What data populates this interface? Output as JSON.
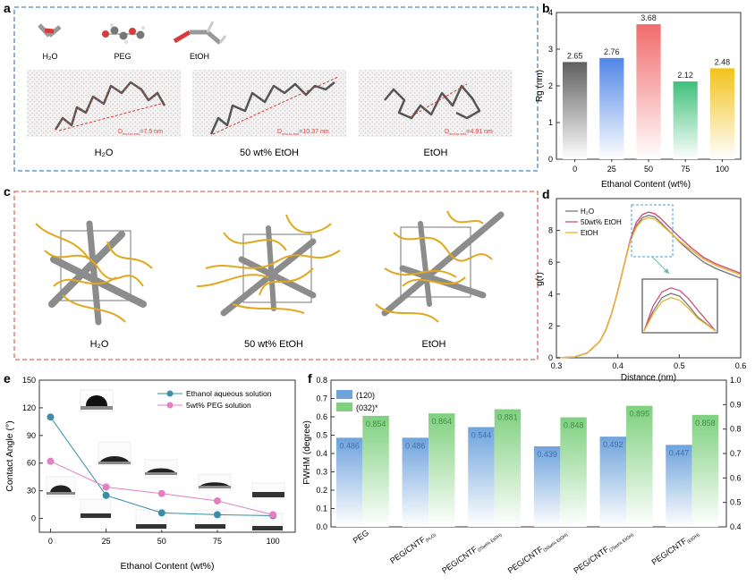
{
  "panel_letters": {
    "a": "a",
    "b": "b",
    "c": "c",
    "d": "d",
    "e": "e",
    "f": "f"
  },
  "panel_a": {
    "molecules": [
      "H₂O",
      "PEG",
      "EtOH"
    ],
    "captions": [
      "H₂O",
      "50 wt% EtOH",
      "EtOH"
    ],
    "d_sub": "end-to-end",
    "d_values": [
      "=7.5 nm",
      "=10.37 nm",
      "=4.91 nm"
    ],
    "d_letter": "D"
  },
  "panel_c": {
    "captions": [
      "H₂O",
      "50 wt% EtOH",
      "EtOH"
    ]
  },
  "colors": {
    "blue_frame": "#4a86c8",
    "red_frame": "#e06a5a",
    "polymer": "#e0a81e",
    "cntf": "#8c8c8c"
  },
  "chart_data": [
    {
      "id": "b",
      "type": "bar",
      "categories": [
        "0",
        "25",
        "50",
        "75",
        "100"
      ],
      "values": [
        2.65,
        2.76,
        3.68,
        2.12,
        2.48
      ],
      "value_labels": [
        "2.65",
        "2.76",
        "3.68",
        "2.12",
        "2.48"
      ],
      "colors": [
        "#6b6b6b",
        "#4f86e8",
        "#f06b6b",
        "#3fc07a",
        "#f2c21b"
      ],
      "xlabel": "Ethanol Content (wt%)",
      "ylabel": "Rg (nm)",
      "ylim": [
        0,
        4
      ],
      "yticks": [
        "0",
        "1",
        "2",
        "3",
        "4"
      ]
    },
    {
      "id": "d",
      "type": "line",
      "xlabel": "Distance (nm)",
      "ylabel": "g(r)",
      "xlim": [
        0.3,
        0.6
      ],
      "ylim": [
        0,
        10
      ],
      "xticks": [
        "0.3",
        "0.4",
        "0.5",
        "0.6"
      ],
      "yticks": [
        "0",
        "2",
        "4",
        "6",
        "8"
      ],
      "series": [
        {
          "name": "H₂O",
          "color": "#7a7a7a",
          "x": [
            0.3,
            0.33,
            0.35,
            0.37,
            0.38,
            0.39,
            0.4,
            0.41,
            0.42,
            0.43,
            0.44,
            0.45,
            0.46,
            0.47,
            0.48,
            0.5,
            0.52,
            0.54,
            0.56,
            0.58,
            0.6
          ],
          "y": [
            0,
            0.05,
            0.3,
            1.0,
            1.7,
            2.8,
            4.2,
            5.8,
            7.3,
            8.3,
            8.8,
            8.95,
            8.85,
            8.5,
            8.1,
            7.3,
            6.6,
            6.0,
            5.6,
            5.3,
            5.0
          ]
        },
        {
          "name": "50wt% EtOH",
          "color": "#d0507a",
          "x": [
            0.3,
            0.33,
            0.35,
            0.37,
            0.38,
            0.39,
            0.4,
            0.41,
            0.42,
            0.43,
            0.44,
            0.45,
            0.46,
            0.47,
            0.48,
            0.5,
            0.52,
            0.54,
            0.56,
            0.58,
            0.6
          ],
          "y": [
            0,
            0.05,
            0.3,
            1.0,
            1.7,
            2.8,
            4.2,
            5.8,
            7.4,
            8.5,
            9.0,
            9.15,
            9.05,
            8.75,
            8.35,
            7.6,
            6.9,
            6.3,
            5.9,
            5.6,
            5.3
          ]
        },
        {
          "name": "EtOH",
          "color": "#e8b530",
          "x": [
            0.3,
            0.33,
            0.35,
            0.37,
            0.38,
            0.39,
            0.4,
            0.41,
            0.42,
            0.43,
            0.44,
            0.45,
            0.46,
            0.47,
            0.48,
            0.5,
            0.52,
            0.54,
            0.56,
            0.58,
            0.6
          ],
          "y": [
            0,
            0.05,
            0.3,
            1.0,
            1.7,
            2.8,
            4.2,
            5.8,
            7.3,
            8.2,
            8.65,
            8.8,
            8.7,
            8.4,
            8.05,
            7.35,
            6.75,
            6.2,
            5.8,
            5.5,
            5.2
          ]
        }
      ]
    },
    {
      "id": "e",
      "type": "line",
      "xlabel": "Ethanol Content (wt%)",
      "ylabel": "Contact Angle (°)",
      "xlim": [
        -5,
        110
      ],
      "ylim": [
        -15,
        150
      ],
      "xticks": [
        "0",
        "25",
        "50",
        "75",
        "100"
      ],
      "xtick_values": [
        0,
        25,
        50,
        75,
        100
      ],
      "yticks": [
        "0",
        "30",
        "60",
        "90",
        "120",
        "150"
      ],
      "ytick_values": [
        0,
        30,
        60,
        90,
        120,
        150
      ],
      "series": [
        {
          "name": "Ethanol aqueous solution",
          "color": "#3a8ea8",
          "x": [
            0,
            25,
            50,
            75,
            100
          ],
          "y": [
            110,
            25,
            6,
            4,
            3
          ]
        },
        {
          "name": "5wt% PEG solution",
          "color": "#e57fc2",
          "x": [
            0,
            25,
            50,
            75,
            100
          ],
          "y": [
            62,
            34,
            27,
            19,
            4
          ]
        }
      ]
    },
    {
      "id": "f",
      "type": "bar",
      "categories": [
        "PEG",
        "PEG/CNTF",
        "PEG/CNTF",
        "PEG/CNTF",
        "PEG/CNTF",
        "PEG/CNTF"
      ],
      "category_subs": [
        "",
        "(H₂O)",
        "(25wt% EtOH)",
        "(50wt% EtOH)",
        "(75wt% EtOH)",
        "(EtOH)"
      ],
      "ylabel": "FWHM (degree)",
      "ylim": [
        0,
        0.8
      ],
      "yticks": [
        "0.0",
        "0.1",
        "0.2",
        "0.3",
        "0.4",
        "0.5",
        "0.6",
        "0.7",
        "0.8"
      ],
      "y2lim": [
        0.4,
        1.0
      ],
      "y2ticks": [
        "0.4",
        "0.5",
        "0.6",
        "0.7",
        "0.8",
        "0.9",
        "1.0"
      ],
      "series": [
        {
          "name": "(120)",
          "color": "#6fa3dc",
          "axis": "left",
          "values": [
            0.486,
            0.486,
            0.544,
            0.439,
            0.492,
            0.447
          ],
          "labels": [
            "0.486",
            "0.486",
            "0.544",
            "0.439",
            "0.492",
            "0.447"
          ]
        },
        {
          "name": "(032)*",
          "color": "#7fd07f",
          "axis": "right",
          "values": [
            0.854,
            0.864,
            0.881,
            0.848,
            0.895,
            0.858
          ],
          "labels": [
            "0.854",
            "0.864",
            "0.881",
            "0.848",
            "0.895",
            "0.858"
          ]
        }
      ]
    }
  ]
}
